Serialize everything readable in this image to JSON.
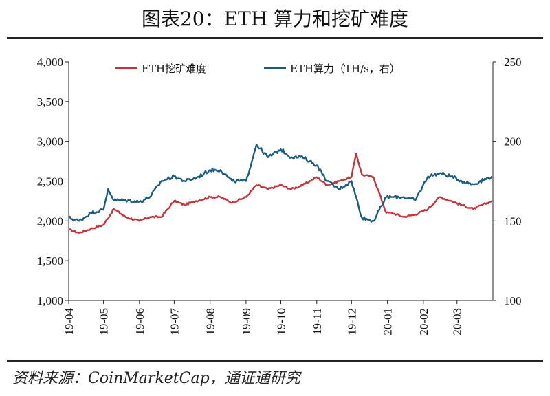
{
  "title": "图表20：ETH 算力和挖矿难度",
  "source": "资料来源：CoinMarketCap，通证通研究",
  "chart_data": {
    "type": "line",
    "x_tick_labels": [
      "19-04",
      "19-05",
      "19-06",
      "19-07",
      "19-08",
      "19-09",
      "19-10",
      "19-11",
      "19-12",
      "20-01",
      "20-02",
      "20-03"
    ],
    "x_range": [
      "19-04-01",
      "20-03-31"
    ],
    "y_left": {
      "ylim": [
        1000,
        4000
      ],
      "ticks": [
        "1,000",
        "1,500",
        "2,000",
        "2,500",
        "3,000",
        "3,500",
        "4,000"
      ]
    },
    "y_right": {
      "ylim": [
        100,
        250
      ],
      "ticks": [
        "100",
        "150",
        "200",
        "250"
      ]
    },
    "legend_placement": "top",
    "series": [
      {
        "name": "ETH挖矿难度",
        "axis": "left",
        "color": "#c8323a",
        "x": [
          "19-04-01",
          "19-04-10",
          "19-04-20",
          "19-05-01",
          "19-05-10",
          "19-05-20",
          "19-06-01",
          "19-06-10",
          "19-06-20",
          "19-07-01",
          "19-07-10",
          "19-07-20",
          "19-08-01",
          "19-08-10",
          "19-08-20",
          "19-09-01",
          "19-09-10",
          "19-09-20",
          "19-10-01",
          "19-10-10",
          "19-10-20",
          "19-11-01",
          "19-11-10",
          "19-11-20",
          "19-12-01",
          "19-12-05",
          "19-12-10",
          "19-12-20",
          "19-12-31",
          "20-01-05",
          "20-01-15",
          "20-01-25",
          "20-02-05",
          "20-02-15",
          "20-02-25",
          "20-03-05",
          "20-03-15",
          "20-03-31"
        ],
        "values": [
          1890,
          1850,
          1900,
          1950,
          2150,
          2050,
          2000,
          2050,
          2050,
          2250,
          2200,
          2250,
          2300,
          2300,
          2230,
          2300,
          2450,
          2400,
          2450,
          2400,
          2450,
          2550,
          2450,
          2500,
          2550,
          2850,
          2580,
          2550,
          2100,
          2100,
          2050,
          2080,
          2150,
          2300,
          2250,
          2200,
          2150,
          2250
        ]
      },
      {
        "name": "ETH算力（TH/s，右）",
        "axis": "right",
        "color": "#1a5b84",
        "x": [
          "19-04-01",
          "19-04-10",
          "19-04-20",
          "19-05-01",
          "19-05-05",
          "19-05-10",
          "19-05-20",
          "19-06-01",
          "19-06-10",
          "19-06-20",
          "19-07-01",
          "19-07-10",
          "19-07-20",
          "19-08-01",
          "19-08-10",
          "19-08-20",
          "19-09-01",
          "19-09-10",
          "19-09-20",
          "19-10-01",
          "19-10-10",
          "19-10-20",
          "19-11-01",
          "19-11-10",
          "19-11-20",
          "19-12-01",
          "19-12-10",
          "19-12-20",
          "19-12-31",
          "20-01-05",
          "20-01-15",
          "20-01-25",
          "20-02-05",
          "20-02-15",
          "20-02-25",
          "20-03-05",
          "20-03-15",
          "20-03-31"
        ],
        "values": [
          152,
          150,
          155,
          157,
          170,
          163,
          163,
          162,
          165,
          175,
          178,
          175,
          177,
          182,
          182,
          175,
          175,
          198,
          190,
          195,
          190,
          190,
          185,
          175,
          170,
          175,
          152,
          150,
          165,
          165,
          165,
          163,
          178,
          180,
          178,
          175,
          173,
          178
        ]
      }
    ]
  }
}
